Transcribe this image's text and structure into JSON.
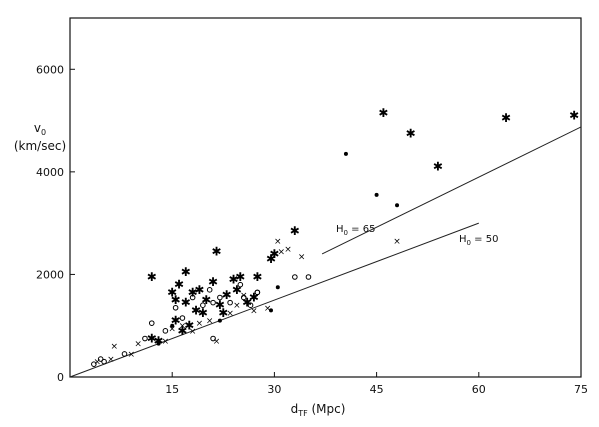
{
  "chart_data": {
    "type": "scatter",
    "title": "",
    "xlabel_main": "d",
    "xlabel_sub": "TF",
    "xlabel_rest": " (Mpc)",
    "ylabel_main": "v",
    "ylabel_sub": "0",
    "ylabel_unit": "(km/sec)",
    "xlim": [
      0,
      75
    ],
    "ylim": [
      0,
      7000
    ],
    "xticks": [
      15,
      30,
      45,
      60,
      75
    ],
    "yticks": [
      2000,
      4000,
      6000
    ],
    "grid": false,
    "series": [
      {
        "marker": "star",
        "points": [
          [
            12,
            1950
          ],
          [
            15,
            1650
          ],
          [
            15.5,
            1500
          ],
          [
            16,
            1800
          ],
          [
            17,
            2050
          ],
          [
            17,
            1450
          ],
          [
            18,
            1650
          ],
          [
            18.5,
            1300
          ],
          [
            19,
            1700
          ],
          [
            20,
            1500
          ],
          [
            21,
            1850
          ],
          [
            21.5,
            2450
          ],
          [
            22,
            1400
          ],
          [
            22.5,
            1250
          ],
          [
            23,
            1600
          ],
          [
            24,
            1900
          ],
          [
            24.5,
            1700
          ],
          [
            25,
            1950
          ],
          [
            26,
            1450
          ],
          [
            27,
            1550
          ],
          [
            27.5,
            1950
          ],
          [
            29.5,
            2300
          ],
          [
            30,
            2400
          ],
          [
            33,
            2850
          ],
          [
            46,
            5150
          ],
          [
            50,
            4750
          ],
          [
            54,
            4100
          ],
          [
            64,
            5050
          ],
          [
            74,
            5100
          ],
          [
            15.5,
            1100
          ],
          [
            16.5,
            900
          ],
          [
            17.5,
            1000
          ],
          [
            13,
            700
          ],
          [
            12,
            750
          ],
          [
            19.5,
            1250
          ]
        ]
      },
      {
        "marker": "x",
        "points": [
          [
            6.5,
            600
          ],
          [
            9,
            450
          ],
          [
            10,
            650
          ],
          [
            14,
            700
          ],
          [
            15,
            950
          ],
          [
            16.5,
            1000
          ],
          [
            18,
            900
          ],
          [
            19,
            1050
          ],
          [
            20.5,
            1100
          ],
          [
            21.5,
            700
          ],
          [
            23.5,
            1250
          ],
          [
            24.5,
            1400
          ],
          [
            25.5,
            1600
          ],
          [
            27,
            1300
          ],
          [
            29,
            1350
          ],
          [
            30.5,
            2650
          ],
          [
            31,
            2450
          ],
          [
            32,
            2500
          ],
          [
            34,
            2350
          ],
          [
            48,
            2650
          ],
          [
            4,
            300
          ],
          [
            6,
            350
          ]
        ]
      },
      {
        "marker": "open-circle",
        "points": [
          [
            3.5,
            250
          ],
          [
            4.5,
            350
          ],
          [
            5,
            300
          ],
          [
            8,
            450
          ],
          [
            11,
            750
          ],
          [
            12,
            1050
          ],
          [
            14,
            900
          ],
          [
            15.5,
            1350
          ],
          [
            16.5,
            1150
          ],
          [
            18,
            1550
          ],
          [
            19.5,
            1400
          ],
          [
            20.5,
            1700
          ],
          [
            21,
            1450
          ],
          [
            21,
            750
          ],
          [
            22,
            1550
          ],
          [
            23.5,
            1450
          ],
          [
            25,
            1800
          ],
          [
            25.5,
            1550
          ],
          [
            26.5,
            1400
          ],
          [
            27.5,
            1650
          ],
          [
            33,
            1950
          ],
          [
            35,
            1950
          ],
          [
            27.5,
            1650
          ]
        ]
      },
      {
        "marker": "filled-dot",
        "points": [
          [
            40.5,
            4350
          ],
          [
            45,
            3550
          ],
          [
            48,
            3350
          ],
          [
            29.5,
            1300
          ],
          [
            30.5,
            1750
          ],
          [
            22,
            1100
          ],
          [
            15,
            1000
          ],
          [
            13,
            650
          ]
        ]
      }
    ],
    "lines": [
      {
        "label_main": "H",
        "label_sub": "0",
        "label_rest": " = 65",
        "x": [
          37,
          75
        ],
        "y": [
          2400,
          4875
        ]
      },
      {
        "label_main": "H",
        "label_sub": "0",
        "label_rest": " = 50",
        "x": [
          0,
          60
        ],
        "y": [
          0,
          3000
        ]
      }
    ]
  }
}
